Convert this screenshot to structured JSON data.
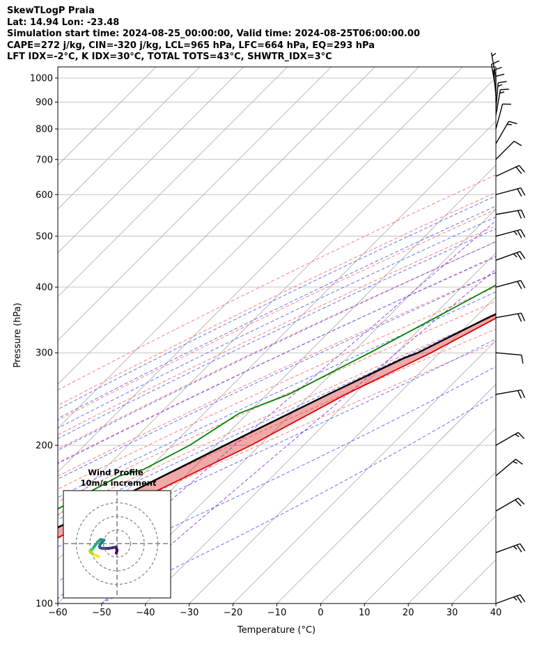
{
  "header": {
    "line1": "SkewTLogP Praia",
    "line2": "Lat: 14.94   Lon: -23.48",
    "line3": "Simulation start time: 2024-08-25_00:00:00, Valid time: 2024-08-25T06:00:00.00",
    "line4": "CAPE=272 j/kg, CIN=-320 j/kg, LCL=965 hPa, LFC=664 hPa, EQ=293 hPa",
    "line5": "LFT IDX=-2°C, K IDX=30°C, TOTAL TOTS=43°C, SHWTR_IDX=3°C"
  },
  "chart_data": {
    "type": "skewt-logp",
    "xlabel": "Temperature (°C)",
    "ylabel": "Pressure (hPa)",
    "xlim": [
      -60,
      40
    ],
    "ylim": [
      1050,
      100
    ],
    "x_ticks": [
      -60,
      -50,
      -40,
      -30,
      -20,
      -10,
      0,
      10,
      20,
      30,
      40
    ],
    "x_tick_labels": [
      "−60",
      "−50",
      "−40",
      "−30",
      "−20",
      "−10",
      "0",
      "10",
      "20",
      "30",
      "40"
    ],
    "y_ticks": [
      1000,
      900,
      800,
      700,
      600,
      500,
      400,
      300,
      200,
      100
    ],
    "y_tick_labels": [
      "1000",
      "900",
      "800",
      "700",
      "600",
      "500",
      "400",
      "300",
      "200",
      "100"
    ],
    "colors": {
      "temperature": "#e00000",
      "dewpoint": "#008000",
      "parcel": "#000000",
      "cape": "#2f7fbf",
      "cin": "#d62728",
      "dry_adiabat": "#ff6a6a",
      "moist_adiabat": "#4a5cff",
      "mixing_ratio": "#8a2be2",
      "isotherm": "#aaaaaa"
    },
    "temperature": {
      "p": [
        1000,
        985,
        950,
        925,
        900,
        875,
        850,
        800,
        750,
        700,
        650,
        600,
        550,
        500,
        450,
        400,
        350,
        300,
        250,
        200,
        150,
        125,
        110,
        100
      ],
      "t": [
        24.0,
        24.5,
        25.5,
        27.0,
        28.5,
        27.5,
        25.5,
        20.5,
        15.5,
        11.0,
        6.5,
        2.0,
        -3.0,
        -8.0,
        -13.0,
        -19.0,
        -25.0,
        -32.0,
        -42.0,
        -52.0,
        -68.0,
        -79.0,
        -82.0,
        -82.0
      ]
    },
    "dewpoint": {
      "p": [
        1000,
        985,
        950,
        925,
        900,
        875,
        850,
        800,
        750,
        700,
        650,
        600,
        550,
        500,
        450,
        400,
        350,
        300,
        250,
        230,
        200,
        180,
        175,
        150,
        125,
        110,
        100
      ],
      "t": [
        23.5,
        23.0,
        18.0,
        10.0,
        5.0,
        3.0,
        1.0,
        -3.0,
        -2.0,
        -6.0,
        -8.0,
        -12.0,
        -17.0,
        -22.0,
        -28.0,
        -33.0,
        -39.0,
        -46.0,
        -55.0,
        -62.0,
        -66.0,
        -71.0,
        -75.0,
        -82.0,
        -88.0,
        -90.0,
        -90.0
      ]
    },
    "parcel": {
      "p": [
        1000,
        965,
        900,
        850,
        800,
        750,
        700,
        664,
        600,
        550,
        500,
        450,
        400,
        350,
        300,
        293,
        250,
        200,
        150,
        125,
        100
      ],
      "t": [
        27.0,
        23.5,
        21.5,
        19.5,
        17.5,
        15.0,
        12.0,
        9.6,
        4.5,
        -0.5,
        -6.0,
        -12.0,
        -19.0,
        -27.0,
        -35.0,
        -37.0,
        -46.0,
        -58.0,
        -73.0,
        -84.0,
        -96.0
      ]
    },
    "isotherms": [
      -160,
      -150,
      -140,
      -130,
      -120,
      -110,
      -100,
      -90,
      -80,
      -70,
      -60,
      -50,
      -40,
      -30,
      -20,
      -10,
      0,
      10,
      20,
      30,
      40
    ],
    "dry_adiabats_theta_c": [
      -30,
      -20,
      -10,
      0,
      10,
      20,
      30,
      40,
      50,
      60,
      70,
      80
    ],
    "moist_adiabats_c": [
      -20,
      -15,
      -10,
      -5,
      0,
      5,
      10,
      15,
      20,
      25,
      30,
      35
    ],
    "mixing_ratio_lines_gkg": [
      0.1,
      0.4
    ],
    "wind_barbs": [
      {
        "p": 100,
        "speed_kt": 25,
        "dir_deg": 70
      },
      {
        "p": 125,
        "speed_kt": 25,
        "dir_deg": 70
      },
      {
        "p": 150,
        "speed_kt": 20,
        "dir_deg": 60
      },
      {
        "p": 175,
        "speed_kt": 15,
        "dir_deg": 50
      },
      {
        "p": 200,
        "speed_kt": 15,
        "dir_deg": 60
      },
      {
        "p": 250,
        "speed_kt": 20,
        "dir_deg": 80
      },
      {
        "p": 300,
        "speed_kt": 10,
        "dir_deg": 95
      },
      {
        "p": 350,
        "speed_kt": 20,
        "dir_deg": 80
      },
      {
        "p": 400,
        "speed_kt": 20,
        "dir_deg": 75
      },
      {
        "p": 450,
        "speed_kt": 25,
        "dir_deg": 70
      },
      {
        "p": 500,
        "speed_kt": 25,
        "dir_deg": 75
      },
      {
        "p": 550,
        "speed_kt": 20,
        "dir_deg": 80
      },
      {
        "p": 600,
        "speed_kt": 20,
        "dir_deg": 75
      },
      {
        "p": 650,
        "speed_kt": 20,
        "dir_deg": 65
      },
      {
        "p": 700,
        "speed_kt": 10,
        "dir_deg": 45
      },
      {
        "p": 750,
        "speed_kt": 15,
        "dir_deg": 30
      },
      {
        "p": 800,
        "speed_kt": 10,
        "dir_deg": 15
      },
      {
        "p": 850,
        "speed_kt": 15,
        "dir_deg": 10
      },
      {
        "p": 875,
        "speed_kt": 15,
        "dir_deg": 5
      },
      {
        "p": 900,
        "speed_kt": 10,
        "dir_deg": 0
      },
      {
        "p": 925,
        "speed_kt": 10,
        "dir_deg": 355
      },
      {
        "p": 950,
        "speed_kt": 10,
        "dir_deg": 350
      },
      {
        "p": 1000,
        "speed_kt": 5,
        "dir_deg": 350
      }
    ],
    "hodograph": {
      "title": "Wind Profile",
      "subtitle": "10m/s increment",
      "rings_ms": [
        10,
        20,
        30
      ],
      "max_ms": 40,
      "u": [
        -0.5,
        0.0,
        -0.5,
        -0.5,
        -3.0,
        -6.0,
        -9.0,
        -11.0,
        -12.5,
        -13.0,
        -12.0,
        -10.5,
        -9.5,
        -12.0,
        -14.0,
        -15.5,
        -17.0,
        -18.0,
        -18.5,
        -19.0,
        -20.0,
        -19.5,
        -18.0,
        -16.5,
        -15.0,
        -13.5
      ],
      "v": [
        -7.0,
        -5.0,
        -3.0,
        -2.5,
        -3.0,
        -3.5,
        -3.5,
        -3.5,
        -3.0,
        -2.0,
        0.0,
        1.5,
        2.5,
        3.0,
        1.5,
        -0.5,
        -2.5,
        -4.0,
        -4.5,
        -5.0,
        -5.5,
        -6.5,
        -7.5,
        -8.5,
        -9.0,
        -9.5
      ]
    }
  }
}
